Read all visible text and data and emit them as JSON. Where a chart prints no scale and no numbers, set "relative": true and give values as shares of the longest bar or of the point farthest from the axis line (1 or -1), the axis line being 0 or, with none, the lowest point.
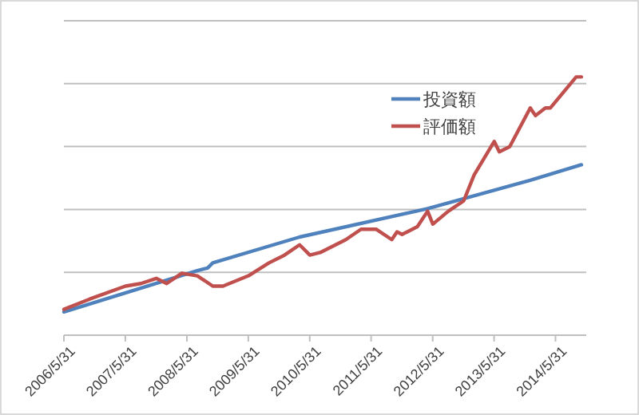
{
  "chart_data": {
    "type": "line",
    "relative": true,
    "grid": "y",
    "legend": "top right",
    "line_style": "solid",
    "xlim": [
      "2006-05-31",
      "2014-11-30"
    ],
    "xticks": [
      {
        "value": "2006-05-31",
        "label": "2006/5/31"
      },
      {
        "value": "2007-05-31",
        "label": "2007/5/31"
      },
      {
        "value": "2008-05-31",
        "label": "2008/5/31"
      },
      {
        "value": "2009-05-31",
        "label": "2009/5/31"
      },
      {
        "value": "2010-05-31",
        "label": "2010/5/31"
      },
      {
        "value": "2011-05-31",
        "label": "2011/5/31"
      },
      {
        "value": "2012-05-31",
        "label": "2012/5/31"
      },
      {
        "value": "2013-05-31",
        "label": "2013/5/31"
      },
      {
        "value": "2014-05-31",
        "label": "2014/5/31"
      }
    ],
    "series": [
      {
        "name": "投資額",
        "color": "#4f81bd",
        "x": [
          "2006-05-31",
          "2008-08",
          "2008-10",
          "2008-11",
          "2010-04",
          "2012-05",
          "2014-01",
          "2014-11"
        ],
        "values": [
          0.09,
          0.25,
          0.26,
          0.28,
          0.38,
          0.49,
          0.6,
          0.66
        ]
      },
      {
        "name": "評価額",
        "color": "#c0504d",
        "x": [
          "2006-05-31",
          "2006-11",
          "2007-06",
          "2007-09",
          "2007-12",
          "2008-02",
          "2008-05",
          "2008-08",
          "2008-11",
          "2009-01",
          "2009-06",
          "2009-10",
          "2010-01",
          "2010-04",
          "2010-06",
          "2010-08",
          "2011-01",
          "2011-04",
          "2011-07",
          "2011-10",
          "2011-11",
          "2011-12",
          "2012-03",
          "2012-05",
          "2012-06",
          "2012-09",
          "2012-12",
          "2013-02",
          "2013-06",
          "2013-07",
          "2013-09",
          "2014-01",
          "2014-02",
          "2014-04",
          "2014-05",
          "2014-10",
          "2014-11"
        ],
        "values": [
          0.1,
          0.14,
          0.19,
          0.2,
          0.22,
          0.2,
          0.24,
          0.23,
          0.19,
          0.19,
          0.23,
          0.28,
          0.31,
          0.35,
          0.31,
          0.32,
          0.37,
          0.41,
          0.41,
          0.37,
          0.4,
          0.39,
          0.42,
          0.48,
          0.43,
          0.48,
          0.52,
          0.62,
          0.75,
          0.71,
          0.73,
          0.88,
          0.85,
          0.88,
          0.88,
          1.0,
          1.0
        ]
      }
    ]
  }
}
